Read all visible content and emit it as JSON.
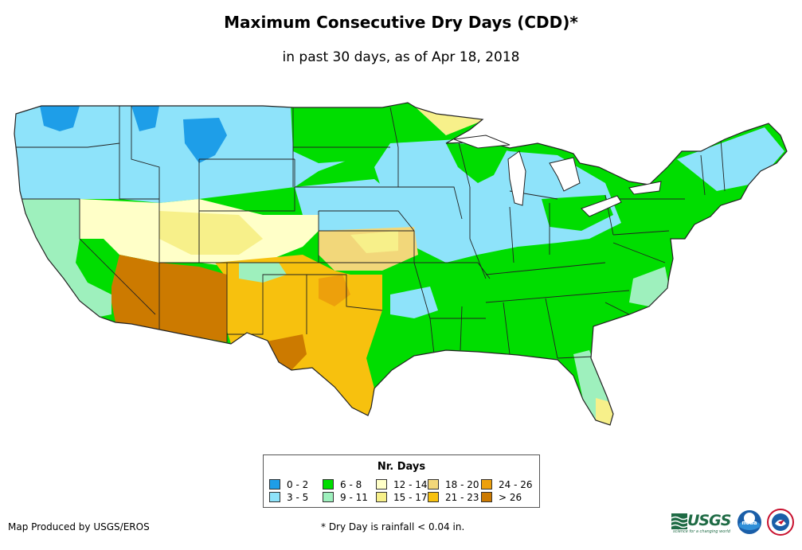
{
  "title": "Maximum Consecutive Dry Days (CDD)*",
  "subtitle": "in past 30 days, as of Apr 18, 2018",
  "legend": {
    "title": "Nr. Days",
    "items": [
      {
        "label": "0 - 2",
        "color": "#1e9ee8"
      },
      {
        "label": "3 - 5",
        "color": "#8ee3fa"
      },
      {
        "label": "6 - 8",
        "color": "#00dd00"
      },
      {
        "label": "9 - 11",
        "color": "#9ef0bd"
      },
      {
        "label": "12 - 14",
        "color": "#ffffc8"
      },
      {
        "label": "15 - 17",
        "color": "#f7f08a"
      },
      {
        "label": "18 - 20",
        "color": "#f2d77a"
      },
      {
        "label": "21 - 23",
        "color": "#f7c10e"
      },
      {
        "label": "24 - 26",
        "color": "#eda00c"
      },
      {
        "label": "> 26",
        "color": "#cc7a00"
      }
    ]
  },
  "credit": "Map Produced by USGS/EROS",
  "footnote": "* Dry Day is rainfall < 0.04 in.",
  "logos": {
    "usgs": "USGS",
    "usgs_tagline": "science for a changing world",
    "noaa": "noaa"
  },
  "colors": {
    "border": "#222222",
    "background": "#ffffff"
  }
}
